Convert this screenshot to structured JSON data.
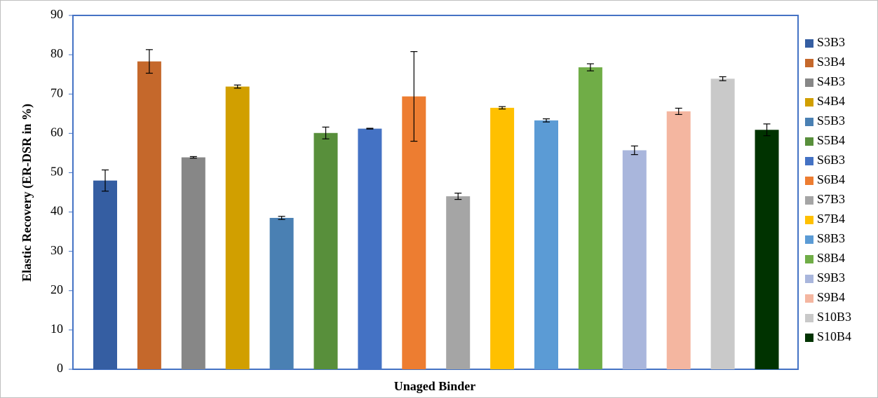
{
  "chart_data": {
    "type": "bar",
    "x_label": "Unaged Binder",
    "y_label": "Elastic Recovery (ER-DSR in %)",
    "ylim": [
      0,
      90
    ],
    "yticks": [
      0,
      10,
      20,
      30,
      40,
      50,
      60,
      70,
      80,
      90
    ],
    "grid": false,
    "legend": "right",
    "series": [
      {
        "name": "S3B3",
        "color": "#355ea2",
        "values": [
          48.0
        ],
        "errors": [
          2.7
        ]
      },
      {
        "name": "S3B4",
        "color": "#c5682b",
        "values": [
          78.3
        ],
        "errors": [
          3.0
        ]
      },
      {
        "name": "S4B3",
        "color": "#878787",
        "values": [
          53.9
        ],
        "errors": [
          0.2
        ]
      },
      {
        "name": "S4B4",
        "color": "#d19f00",
        "values": [
          71.9
        ],
        "errors": [
          0.4
        ]
      },
      {
        "name": "S5B3",
        "color": "#4a80b3",
        "values": [
          38.5
        ],
        "errors": [
          0.4
        ]
      },
      {
        "name": "S5B4",
        "color": "#588f3b",
        "values": [
          60.1
        ],
        "errors": [
          1.5
        ]
      },
      {
        "name": "S6B3",
        "color": "#4472c4",
        "values": [
          61.2
        ],
        "errors": [
          0.1
        ]
      },
      {
        "name": "S6B4",
        "color": "#ed7d31",
        "values": [
          69.4
        ],
        "errors": [
          11.4
        ]
      },
      {
        "name": "S7B3",
        "color": "#a5a5a5",
        "values": [
          44.0
        ],
        "errors": [
          0.8
        ]
      },
      {
        "name": "S7B4",
        "color": "#ffc000",
        "values": [
          66.5
        ],
        "errors": [
          0.3
        ]
      },
      {
        "name": "S8B3",
        "color": "#5b9bd5",
        "values": [
          63.3
        ],
        "errors": [
          0.4
        ]
      },
      {
        "name": "S8B4",
        "color": "#70ad47",
        "values": [
          76.8
        ],
        "errors": [
          0.9
        ]
      },
      {
        "name": "S9B3",
        "color": "#a9b6dc",
        "values": [
          55.7
        ],
        "errors": [
          1.1
        ]
      },
      {
        "name": "S9B4",
        "color": "#f4b6a0",
        "values": [
          65.6
        ],
        "errors": [
          0.8
        ]
      },
      {
        "name": "S10B3",
        "color": "#c9c9c9",
        "values": [
          73.9
        ],
        "errors": [
          0.5
        ]
      },
      {
        "name": "S10B4",
        "color": "#003300",
        "values": [
          60.9
        ],
        "errors": [
          1.5
        ]
      }
    ]
  }
}
